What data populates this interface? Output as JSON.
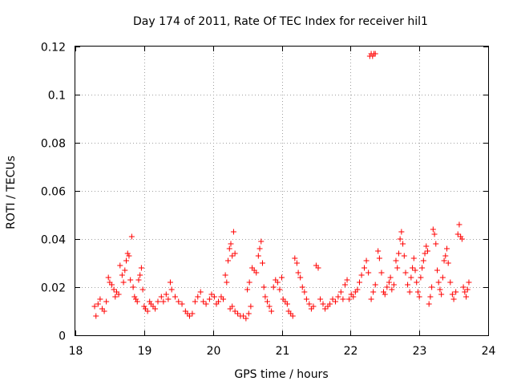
{
  "chart_data": {
    "type": "scatter",
    "title": "Day 174 of 2011, Rate Of TEC Index for receiver hil1",
    "xlabel": "GPS time / hours",
    "ylabel": "ROTI / TECUs",
    "xlim": [
      18,
      24
    ],
    "ylim": [
      0,
      0.12
    ],
    "xticks": [
      18,
      19,
      20,
      21,
      22,
      23,
      24
    ],
    "yticks": [
      0,
      0.02,
      0.04,
      0.06,
      0.08,
      0.1,
      0.12
    ],
    "ytick_labels": [
      "0",
      "0.02",
      "0.04",
      "0.06",
      "0.08",
      "0.1",
      "0.12"
    ],
    "grid": true,
    "marker": "+",
    "marker_color": "#ff0000",
    "series": [
      {
        "name": "ROTI",
        "points": [
          [
            18.28,
            0.012
          ],
          [
            18.3,
            0.008
          ],
          [
            18.33,
            0.013
          ],
          [
            18.36,
            0.015
          ],
          [
            18.39,
            0.011
          ],
          [
            18.42,
            0.01
          ],
          [
            18.45,
            0.014
          ],
          [
            18.48,
            0.024
          ],
          [
            18.5,
            0.022
          ],
          [
            18.53,
            0.021
          ],
          [
            18.56,
            0.019
          ],
          [
            18.58,
            0.016
          ],
          [
            18.6,
            0.018
          ],
          [
            18.63,
            0.017
          ],
          [
            18.65,
            0.029
          ],
          [
            18.68,
            0.025
          ],
          [
            18.7,
            0.022
          ],
          [
            18.72,
            0.027
          ],
          [
            18.74,
            0.031
          ],
          [
            18.76,
            0.034
          ],
          [
            18.78,
            0.033
          ],
          [
            18.8,
            0.023
          ],
          [
            18.82,
            0.041
          ],
          [
            18.84,
            0.02
          ],
          [
            18.86,
            0.016
          ],
          [
            18.88,
            0.015
          ],
          [
            18.9,
            0.014
          ],
          [
            18.92,
            0.023
          ],
          [
            18.94,
            0.025
          ],
          [
            18.96,
            0.028
          ],
          [
            18.98,
            0.019
          ],
          [
            19.0,
            0.012
          ],
          [
            19.02,
            0.011
          ],
          [
            19.05,
            0.01
          ],
          [
            19.08,
            0.014
          ],
          [
            19.1,
            0.013
          ],
          [
            19.13,
            0.012
          ],
          [
            19.16,
            0.011
          ],
          [
            19.2,
            0.014
          ],
          [
            19.25,
            0.016
          ],
          [
            19.28,
            0.014
          ],
          [
            19.32,
            0.017
          ],
          [
            19.35,
            0.015
          ],
          [
            19.38,
            0.022
          ],
          [
            19.4,
            0.019
          ],
          [
            19.45,
            0.016
          ],
          [
            19.5,
            0.014
          ],
          [
            19.55,
            0.013
          ],
          [
            19.6,
            0.01
          ],
          [
            19.63,
            0.009
          ],
          [
            19.66,
            0.008
          ],
          [
            19.7,
            0.009
          ],
          [
            19.74,
            0.014
          ],
          [
            19.78,
            0.016
          ],
          [
            19.82,
            0.018
          ],
          [
            19.86,
            0.014
          ],
          [
            19.9,
            0.013
          ],
          [
            19.95,
            0.015
          ],
          [
            19.98,
            0.017
          ],
          [
            20.02,
            0.016
          ],
          [
            20.05,
            0.013
          ],
          [
            20.08,
            0.014
          ],
          [
            20.12,
            0.016
          ],
          [
            20.15,
            0.015
          ],
          [
            20.18,
            0.025
          ],
          [
            20.2,
            0.022
          ],
          [
            20.22,
            0.031
          ],
          [
            20.24,
            0.036
          ],
          [
            20.26,
            0.038
          ],
          [
            20.28,
            0.033
          ],
          [
            20.3,
            0.043
          ],
          [
            20.32,
            0.034
          ],
          [
            20.25,
            0.011
          ],
          [
            20.28,
            0.012
          ],
          [
            20.32,
            0.01
          ],
          [
            20.36,
            0.009
          ],
          [
            20.4,
            0.008
          ],
          [
            20.44,
            0.008
          ],
          [
            20.48,
            0.007
          ],
          [
            20.52,
            0.009
          ],
          [
            20.55,
            0.012
          ],
          [
            20.5,
            0.019
          ],
          [
            20.53,
            0.022
          ],
          [
            20.57,
            0.028
          ],
          [
            20.6,
            0.027
          ],
          [
            20.63,
            0.026
          ],
          [
            20.66,
            0.033
          ],
          [
            20.68,
            0.036
          ],
          [
            20.7,
            0.039
          ],
          [
            20.72,
            0.03
          ],
          [
            20.74,
            0.02
          ],
          [
            20.76,
            0.016
          ],
          [
            20.79,
            0.014
          ],
          [
            20.82,
            0.012
          ],
          [
            20.85,
            0.01
          ],
          [
            20.88,
            0.02
          ],
          [
            20.91,
            0.023
          ],
          [
            20.94,
            0.022
          ],
          [
            20.97,
            0.019
          ],
          [
            21.0,
            0.024
          ],
          [
            21.02,
            0.015
          ],
          [
            21.05,
            0.014
          ],
          [
            21.08,
            0.013
          ],
          [
            21.1,
            0.01
          ],
          [
            21.13,
            0.009
          ],
          [
            21.16,
            0.008
          ],
          [
            21.19,
            0.032
          ],
          [
            21.22,
            0.03
          ],
          [
            21.24,
            0.026
          ],
          [
            21.27,
            0.024
          ],
          [
            21.3,
            0.02
          ],
          [
            21.33,
            0.018
          ],
          [
            21.36,
            0.015
          ],
          [
            21.4,
            0.013
          ],
          [
            21.43,
            0.011
          ],
          [
            21.46,
            0.012
          ],
          [
            21.5,
            0.029
          ],
          [
            21.53,
            0.028
          ],
          [
            21.56,
            0.015
          ],
          [
            21.6,
            0.013
          ],
          [
            21.63,
            0.011
          ],
          [
            21.67,
            0.012
          ],
          [
            21.7,
            0.013
          ],
          [
            21.74,
            0.015
          ],
          [
            21.78,
            0.014
          ],
          [
            21.82,
            0.016
          ],
          [
            21.86,
            0.018
          ],
          [
            21.89,
            0.015
          ],
          [
            21.92,
            0.021
          ],
          [
            21.95,
            0.023
          ],
          [
            21.98,
            0.015
          ],
          [
            22.01,
            0.017
          ],
          [
            22.04,
            0.016
          ],
          [
            22.07,
            0.018
          ],
          [
            22.1,
            0.019
          ],
          [
            22.13,
            0.022
          ],
          [
            22.16,
            0.025
          ],
          [
            22.2,
            0.028
          ],
          [
            22.23,
            0.031
          ],
          [
            22.26,
            0.026
          ],
          [
            22.28,
            0.116
          ],
          [
            22.3,
            0.117
          ],
          [
            22.32,
            0.116
          ],
          [
            22.34,
            0.117
          ],
          [
            22.36,
            0.117
          ],
          [
            22.3,
            0.015
          ],
          [
            22.33,
            0.018
          ],
          [
            22.36,
            0.021
          ],
          [
            22.4,
            0.035
          ],
          [
            22.42,
            0.032
          ],
          [
            22.45,
            0.026
          ],
          [
            22.48,
            0.018
          ],
          [
            22.5,
            0.017
          ],
          [
            22.53,
            0.02
          ],
          [
            22.56,
            0.022
          ],
          [
            22.58,
            0.024
          ],
          [
            22.6,
            0.019
          ],
          [
            22.63,
            0.021
          ],
          [
            22.66,
            0.031
          ],
          [
            22.68,
            0.028
          ],
          [
            22.7,
            0.034
          ],
          [
            22.72,
            0.04
          ],
          [
            22.74,
            0.043
          ],
          [
            22.76,
            0.038
          ],
          [
            22.78,
            0.033
          ],
          [
            22.8,
            0.026
          ],
          [
            22.83,
            0.021
          ],
          [
            22.86,
            0.018
          ],
          [
            22.88,
            0.024
          ],
          [
            22.9,
            0.028
          ],
          [
            22.92,
            0.032
          ],
          [
            22.94,
            0.027
          ],
          [
            22.96,
            0.022
          ],
          [
            22.98,
            0.018
          ],
          [
            23.0,
            0.016
          ],
          [
            23.02,
            0.024
          ],
          [
            23.04,
            0.028
          ],
          [
            23.06,
            0.031
          ],
          [
            23.08,
            0.034
          ],
          [
            23.1,
            0.037
          ],
          [
            23.12,
            0.035
          ],
          [
            23.14,
            0.013
          ],
          [
            23.16,
            0.016
          ],
          [
            23.18,
            0.02
          ],
          [
            23.2,
            0.044
          ],
          [
            23.22,
            0.042
          ],
          [
            23.24,
            0.038
          ],
          [
            23.26,
            0.027
          ],
          [
            23.28,
            0.022
          ],
          [
            23.3,
            0.019
          ],
          [
            23.32,
            0.017
          ],
          [
            23.34,
            0.024
          ],
          [
            23.36,
            0.031
          ],
          [
            23.38,
            0.033
          ],
          [
            23.4,
            0.036
          ],
          [
            23.42,
            0.03
          ],
          [
            23.45,
            0.022
          ],
          [
            23.48,
            0.017
          ],
          [
            23.5,
            0.015
          ],
          [
            23.53,
            0.018
          ],
          [
            23.56,
            0.042
          ],
          [
            23.58,
            0.046
          ],
          [
            23.6,
            0.041
          ],
          [
            23.62,
            0.04
          ],
          [
            23.64,
            0.02
          ],
          [
            23.66,
            0.018
          ],
          [
            23.68,
            0.016
          ],
          [
            23.7,
            0.019
          ],
          [
            23.72,
            0.022
          ]
        ]
      }
    ]
  }
}
